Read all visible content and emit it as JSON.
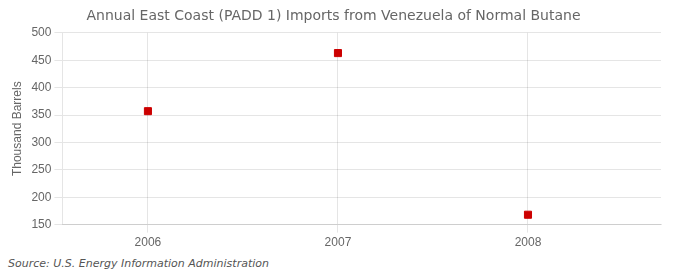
{
  "chart_data": {
    "type": "scatter",
    "title": "Annual East Coast (PADD 1) Imports from Venezuela of Normal Butane",
    "ylabel": "Thousand Barrels",
    "annotation": "Source: U.S. Energy Information Administration",
    "x": [
      2006,
      2007,
      2008
    ],
    "values": [
      357,
      463,
      168
    ],
    "color": "#cc0000",
    "marker": "square",
    "xlim": [
      2005.55,
      2008.7
    ],
    "xticks": [
      2006,
      2007,
      2008
    ],
    "ylim": [
      150,
      500
    ],
    "yticks": [
      150,
      200,
      250,
      300,
      350,
      400,
      450,
      500
    ],
    "grid": true
  }
}
